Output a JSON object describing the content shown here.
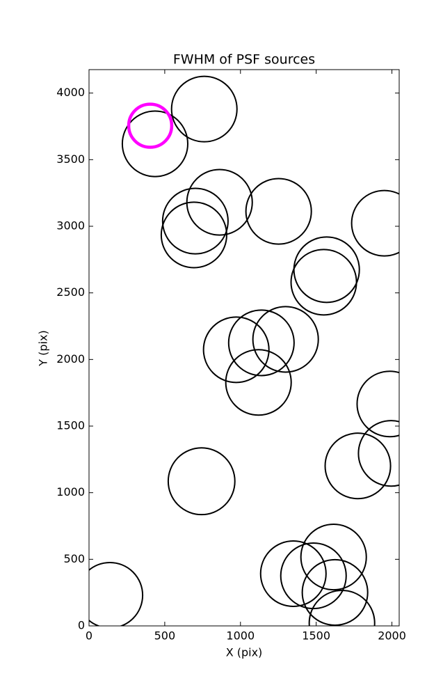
{
  "chart_data": {
    "type": "scatter",
    "title": "FWHM of PSF sources",
    "x_label": "X (pix)",
    "y_label": "Y (pix)",
    "xlim": [
      0,
      2048
    ],
    "ylim": [
      0,
      4176
    ],
    "xticks": [
      0,
      500,
      1000,
      1500,
      2000
    ],
    "yticks": [
      0,
      500,
      1000,
      1500,
      2000,
      2500,
      3000,
      3500,
      4000
    ],
    "series": [
      {
        "color": "#000000",
        "x": [
          436,
          761,
          862,
          702,
          693,
          1252,
          1950,
          1569,
          1550,
          972,
          1138,
          1298,
          1119,
          1986,
          1995,
          1775,
          743,
          1615,
          1349,
          1482,
          1624,
          1670,
          138
        ],
        "values": [
          3619,
          3880,
          3180,
          3039,
          2935,
          3112,
          3023,
          2674,
          2580,
          2073,
          2125,
          2151,
          1828,
          1666,
          1295,
          1201,
          1086,
          517,
          392,
          376,
          251,
          21,
          230
        ],
        "sizes": [
          216,
          216,
          216,
          216,
          216,
          216,
          216,
          216,
          216,
          216,
          216,
          216,
          216,
          216,
          216,
          216,
          220,
          216,
          216,
          216,
          216,
          216,
          216
        ]
      },
      {
        "color": "#ff00ff",
        "x": [
          404
        ],
        "values": [
          3755
        ],
        "sizes": [
          142
        ]
      }
    ]
  }
}
